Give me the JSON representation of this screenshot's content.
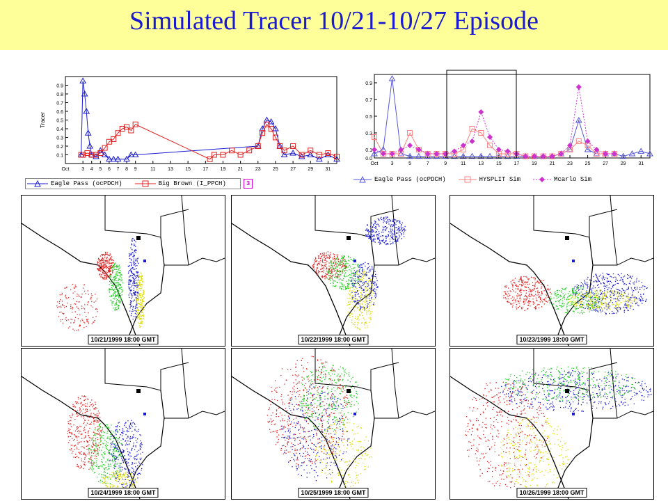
{
  "page": {
    "title": "Simulated Tracer 10/21-10/27 Episode"
  },
  "colors": {
    "title_band": "#ffff99",
    "title_text": "#1a1ad0",
    "eagle_pass": "#1a1ad0",
    "big_brown": "#e02020",
    "hysplit": "#ff8080",
    "mcarlo": "#cc33cc",
    "green_plume": "#22cc22",
    "yellow_plume": "#ffff00"
  },
  "chart_data": [
    {
      "type": "line",
      "ylabel": "Tracer",
      "xlabel": "",
      "ylim": [
        0,
        1.0
      ],
      "xlim": [
        1,
        32
      ],
      "yticks": [
        "0.1",
        "0.2",
        "0.3",
        "0.4",
        "0.5",
        "0.6",
        "0.7",
        "0.8",
        "0.9"
      ],
      "xticks": [
        "Oct",
        "3",
        "4",
        "5",
        "6",
        "7",
        "8",
        "9",
        "11",
        "13",
        "15",
        "17",
        "19",
        "21",
        "23",
        "25",
        "27",
        "29",
        "31"
      ],
      "series": [
        {
          "name": "Eagle Pass (ocPDCH)",
          "color": "#1a1ad0",
          "marker": "triangle",
          "x": [
            2.8,
            3,
            3.2,
            3.4,
            3.6,
            3.8,
            4,
            4.5,
            5,
            5.5,
            6,
            6.5,
            7,
            8,
            8.5,
            9,
            23,
            23.5,
            24,
            24.5,
            25,
            25.5,
            26,
            27,
            28,
            29,
            30,
            31,
            32
          ],
          "y": [
            0.1,
            0.95,
            0.8,
            0.6,
            0.35,
            0.2,
            0.1,
            0.08,
            0.15,
            0.1,
            0.05,
            0.05,
            0.05,
            0.05,
            0.1,
            0.1,
            0.2,
            0.4,
            0.5,
            0.48,
            0.4,
            0.2,
            0.1,
            0.12,
            0.08,
            0.1,
            0.05,
            0.1,
            0.05
          ]
        },
        {
          "name": "Big Brown (I_PPCH)",
          "color": "#e02020",
          "marker": "square",
          "x": [
            2.8,
            3,
            3.5,
            4,
            4.5,
            5,
            5.5,
            6,
            6.5,
            7,
            7.5,
            8,
            8.5,
            9,
            17.5,
            18,
            19,
            20,
            21,
            22,
            23,
            23.5,
            24,
            24.5,
            25,
            25.5,
            26,
            27,
            28,
            29,
            30,
            31,
            32
          ],
          "y": [
            0.1,
            0.1,
            0.12,
            0.1,
            0.1,
            0.12,
            0.18,
            0.25,
            0.28,
            0.35,
            0.4,
            0.42,
            0.38,
            0.45,
            0.05,
            0.1,
            0.1,
            0.15,
            0.1,
            0.15,
            0.2,
            0.35,
            0.45,
            0.4,
            0.3,
            0.2,
            0.15,
            0.2,
            0.1,
            0.15,
            0.1,
            0.12,
            0.08
          ]
        }
      ],
      "legend": {
        "placement": "bottom",
        "badge": "3"
      }
    },
    {
      "type": "line",
      "ylabel": "",
      "xlabel": "",
      "ylim": [
        0,
        1.0
      ],
      "xlim": [
        1,
        32
      ],
      "yticks": [
        "0.0",
        "0.1",
        "0.3",
        "0.5",
        "0.7",
        "0.9"
      ],
      "xticks": [
        "Oct",
        "3",
        "5",
        "7",
        "9",
        "11",
        "13",
        "15",
        "17",
        "19",
        "21",
        "23",
        "25",
        "27",
        "29",
        "31"
      ],
      "series": [
        {
          "name": "Eagle Pass (ocPDCH)",
          "color": "#5555dd",
          "marker": "triangle",
          "x": [
            1,
            2,
            3,
            4,
            5,
            6,
            7,
            8,
            9,
            10,
            11,
            12,
            13,
            14,
            15,
            16,
            17,
            18,
            19,
            20,
            21,
            22,
            23,
            24,
            25,
            26,
            27,
            28,
            29,
            30,
            31,
            32
          ],
          "y": [
            0.05,
            0.1,
            0.95,
            0.05,
            0.02,
            0.02,
            0.02,
            0.02,
            0.02,
            0.02,
            0.02,
            0.02,
            0.02,
            0.02,
            0.02,
            0.02,
            0.02,
            0.02,
            0.02,
            0.02,
            0.02,
            0.05,
            0.1,
            0.45,
            0.1,
            0.05,
            0.05,
            0.05,
            0.02,
            0.05,
            0.08,
            0.05
          ]
        },
        {
          "name": "HYSPLIT Sim",
          "color": "#ff8080",
          "marker": "square",
          "x": [
            1,
            2,
            3,
            4,
            5,
            6,
            7,
            8,
            9,
            10,
            11,
            12,
            13,
            14,
            15,
            16,
            17,
            18,
            19,
            20,
            21,
            22,
            23,
            24,
            25,
            26,
            27,
            28
          ],
          "y": [
            0.25,
            0.05,
            0.05,
            0.05,
            0.3,
            0.1,
            0.05,
            0.05,
            0.05,
            0.05,
            0.1,
            0.35,
            0.3,
            0.15,
            0.05,
            0.05,
            0.05,
            0.02,
            0.02,
            0.02,
            0.02,
            0.05,
            0.1,
            0.2,
            0.15,
            0.05,
            0.05,
            0.05
          ]
        },
        {
          "name": "Mcarlo Sim",
          "color": "#cc33cc",
          "marker": "diamond",
          "x": [
            1,
            2,
            3,
            4,
            5,
            6,
            7,
            8,
            9,
            10,
            11,
            12,
            13,
            14,
            15,
            16,
            17,
            18,
            19,
            20,
            21,
            22,
            23,
            24,
            25,
            26,
            27,
            28
          ],
          "y": [
            0.1,
            0.05,
            0.05,
            0.1,
            0.15,
            0.1,
            0.05,
            0.05,
            0.05,
            0.08,
            0.15,
            0.2,
            0.55,
            0.25,
            0.1,
            0.08,
            0.05,
            0.02,
            0.02,
            0.02,
            0.02,
            0.05,
            0.15,
            0.85,
            0.2,
            0.1,
            0.05,
            0.05
          ]
        }
      ],
      "legend": {
        "placement": "bottom"
      }
    }
  ],
  "panels": [
    {
      "label": "10/21/1999 18:00 GMT"
    },
    {
      "label": "10/22/1999 18:00 GMT"
    },
    {
      "label": "10/23/1999 18:00 GMT"
    },
    {
      "label": "10/24/1999 18:00 GMT"
    },
    {
      "label": "10/25/1999 18:00 GMT"
    },
    {
      "label": "10/26/1999 18:00 GMT"
    }
  ]
}
